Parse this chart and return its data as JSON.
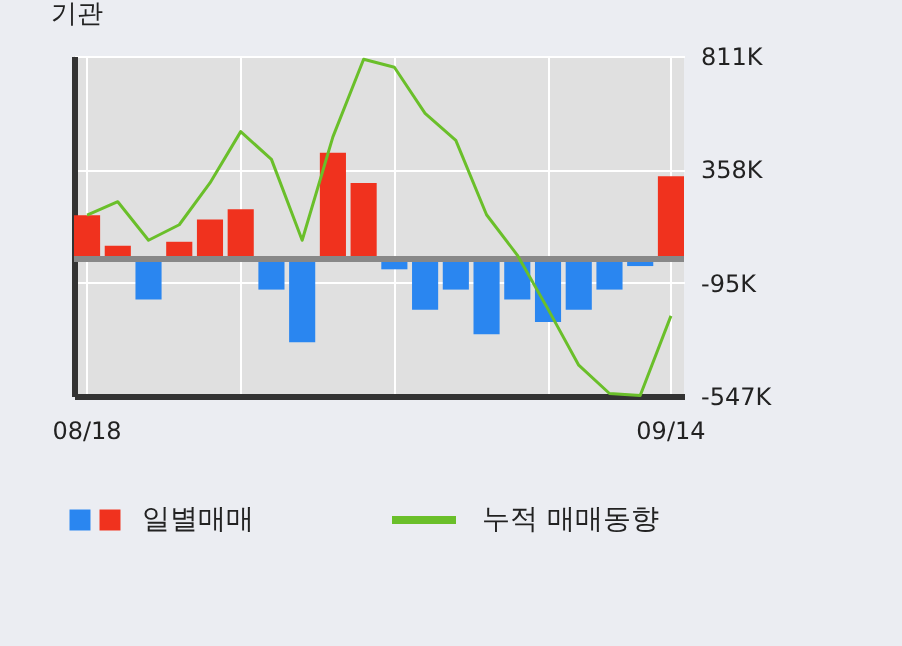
{
  "chart_data": {
    "type": "bar",
    "title": "기관",
    "categories": [
      "08/18",
      null,
      null,
      null,
      null,
      null,
      null,
      null,
      null,
      null,
      null,
      null,
      null,
      null,
      null,
      null,
      null,
      null,
      null,
      "09/14"
    ],
    "series": [
      {
        "name": "일별매매",
        "colors": [
          "#f0321e",
          "#f0321e",
          "#2a86f0",
          "#f0321e",
          "#f0321e",
          "#f0321e",
          "#2a86f0",
          "#2a86f0",
          "#f0321e",
          "#f0321e",
          "#2a86f0",
          "#2a86f0",
          "#2a86f0",
          "#2a86f0",
          "#2a86f0",
          "#2a86f0",
          "#2a86f0",
          "#2a86f0",
          "#2a86f0",
          "#f0321e"
        ],
        "values": [
          175,
          53,
          -162,
          69,
          158,
          199,
          -122,
          -332,
          425,
          304,
          -41,
          -203,
          -122,
          -300,
          -162,
          -251,
          -203,
          -122,
          -28,
          331
        ]
      },
      {
        "name": "누적 매매동향",
        "type": "line",
        "color": "#6abf2a",
        "values": [
          175,
          229,
          75,
          137,
          304,
          509,
          398,
          75,
          488,
          798,
          766,
          582,
          474,
          177,
          16,
          -200,
          -424,
          -537,
          -545,
          -227
        ]
      }
    ],
    "ylim": [
      -547,
      811
    ],
    "yticks": [
      {
        "value": 811,
        "label": "811K"
      },
      {
        "value": 358,
        "label": "358K"
      },
      {
        "value": -95,
        "label": "-95K"
      },
      {
        "value": -547,
        "label": "-547K"
      }
    ],
    "ref_lines": [
      {
        "axis": "y",
        "value": 0,
        "color": "#888888"
      }
    ],
    "grid": true,
    "legend": "bottom"
  }
}
